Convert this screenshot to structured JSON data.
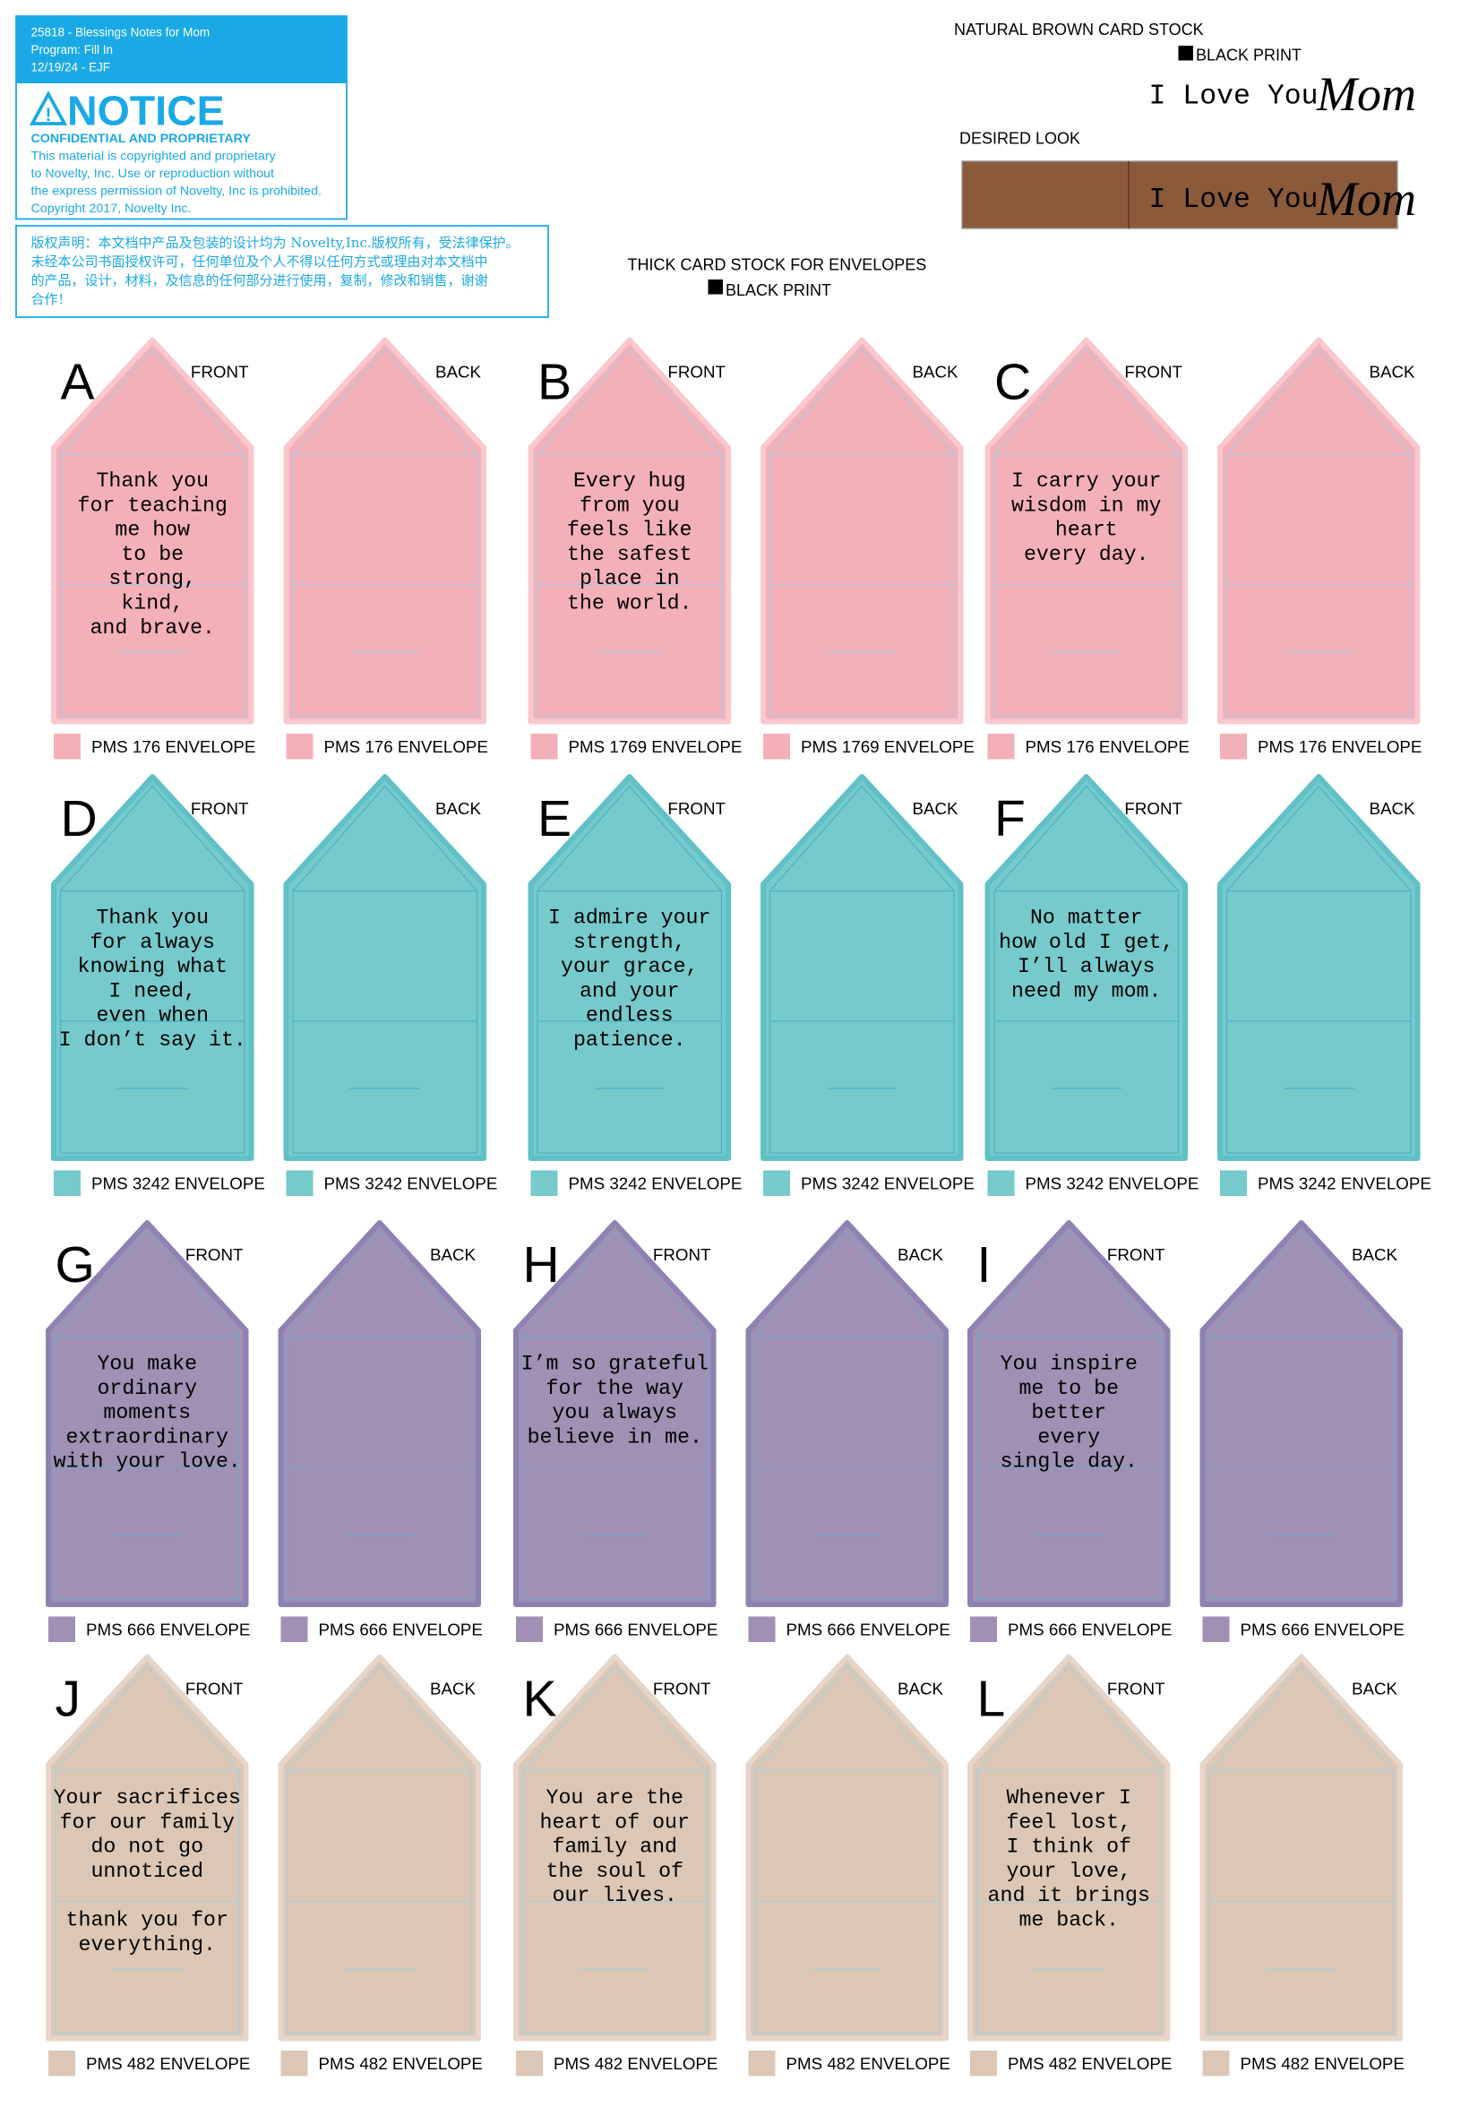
{
  "notice": {
    "meta": [
      "25818 - Blessings Notes for Mom",
      "Program: Fill In",
      "12/19/24 - EJF"
    ],
    "title": "NOTICE",
    "subtitle": "CONFIDENTIAL AND PROPRIETARY",
    "body": [
      "This material is copyrighted and proprietary",
      "to Novelty, Inc. Use or reproduction without",
      "the express permission of Novelty, Inc is prohibited.",
      "Copyright 2017, Novelty Inc."
    ],
    "chinese": [
      "版权声明：本文档中产品及包装的设计均为 Novelty,Inc.版权所有，受法律保护。",
      "未经本公司书面授权许可，任何单位及个人不得以任何方式或理由对本文档中",
      "的产品，设计，材料，及信息的任何部分进行使用，复制，修改和销售，谢谢",
      "合作！"
    ]
  },
  "spec": {
    "card_stock": "NATURAL BROWN CARD STOCK",
    "card_print": "BLACK PRINT",
    "sample_text": "I Love You",
    "sample_script": "Mom",
    "desired_look": "DESIRED LOOK",
    "envelope_stock": "THICK CARD STOCK FOR ENVELOPES",
    "envelope_print": "BLACK PRINT"
  },
  "rows": [
    {
      "fill": "#f4b0b9",
      "edge": "#f8c8ce",
      "inner": "#a9c9e0",
      "groups": [
        {
          "letter": "A",
          "front": {
            "label": "FRONT",
            "message": [
              "Thank you",
              "for teaching",
              "me how",
              "to be",
              "strong,",
              "kind,",
              "and brave."
            ],
            "swatch": "PMS 176 ENVELOPE"
          },
          "back": {
            "label": "BACK",
            "swatch": "PMS 176 ENVELOPE"
          }
        },
        {
          "letter": "B",
          "front": {
            "label": "FRONT",
            "message": [
              "Every hug",
              "from you",
              "feels like",
              "the safest",
              "place in",
              "the world."
            ],
            "swatch": "PMS 1769 ENVELOPE"
          },
          "back": {
            "label": "BACK",
            "swatch": "PMS 1769 ENVELOPE"
          }
        },
        {
          "letter": "C",
          "front": {
            "label": "FRONT",
            "message": [
              "I carry your",
              "wisdom in my",
              "heart",
              "every day."
            ],
            "swatch": "PMS 176 ENVELOPE"
          },
          "back": {
            "label": "BACK",
            "swatch": "PMS 176 ENVELOPE"
          }
        }
      ]
    },
    {
      "fill": "#76cacb",
      "edge": "#5fc1c6",
      "inner": "#4cb0c8",
      "groups": [
        {
          "letter": "D",
          "front": {
            "label": "FRONT",
            "message": [
              "Thank you",
              "for always",
              "knowing what",
              "I need,",
              "even when",
              "I don’t say it."
            ],
            "swatch": "PMS 3242 ENVELOPE"
          },
          "back": {
            "label": "BACK",
            "swatch": "PMS 3242 ENVELOPE"
          }
        },
        {
          "letter": "E",
          "front": {
            "label": "FRONT",
            "message": [
              "I admire your",
              "strength,",
              "your grace,",
              "and your",
              "endless",
              "patience."
            ],
            "swatch": "PMS 3242 ENVELOPE"
          },
          "back": {
            "label": "BACK",
            "swatch": "PMS 3242 ENVELOPE"
          }
        },
        {
          "letter": "F",
          "front": {
            "label": "FRONT",
            "message": [
              "No matter",
              "how old I get,",
              "I’ll always",
              "need my mom."
            ],
            "swatch": "PMS 3242 ENVELOPE"
          },
          "back": {
            "label": "BACK",
            "swatch": "PMS 3242 ENVELOPE"
          }
        }
      ]
    },
    {
      "fill": "#9f90b4",
      "edge": "#8d82b2",
      "inner": "#7fa2c8",
      "groups": [
        {
          "letter": "G",
          "front": {
            "label": "FRONT",
            "message": [
              "You make",
              "ordinary",
              "moments",
              "extraordinary",
              "with your love."
            ],
            "swatch": "PMS 666 ENVELOPE"
          },
          "back": {
            "label": "BACK",
            "swatch": "PMS 666 ENVELOPE"
          }
        },
        {
          "letter": "H",
          "front": {
            "label": "FRONT",
            "message": [
              "I’m so grateful",
              "for the way",
              "you always",
              "believe in me."
            ],
            "swatch": "PMS 666 ENVELOPE"
          },
          "back": {
            "label": "BACK",
            "swatch": "PMS 666 ENVELOPE"
          }
        },
        {
          "letter": "I",
          "front": {
            "label": "FRONT",
            "message": [
              "You inspire",
              "me to be",
              "better",
              "every",
              "single day."
            ],
            "swatch": "PMS 666 ENVELOPE"
          },
          "back": {
            "label": "BACK",
            "swatch": "PMS 666 ENVELOPE"
          }
        }
      ]
    },
    {
      "fill": "#dcc7b6",
      "edge": "#e6d5c9",
      "inner": "#a8cfd8",
      "groups": [
        {
          "letter": "J",
          "front": {
            "label": "FRONT",
            "message": [
              "Your sacrifices",
              "for our family",
              "do not go",
              "unnoticed",
              "",
              "thank you for",
              "everything."
            ],
            "swatch": "PMS 482 ENVELOPE"
          },
          "back": {
            "label": "BACK",
            "swatch": "PMS 482 ENVELOPE"
          }
        },
        {
          "letter": "K",
          "front": {
            "label": "FRONT",
            "message": [
              "You are the",
              "heart of our",
              "family and",
              "the soul of",
              "our lives."
            ],
            "swatch": "PMS 482 ENVELOPE"
          },
          "back": {
            "label": "BACK",
            "swatch": "PMS 482 ENVELOPE"
          }
        },
        {
          "letter": "L",
          "front": {
            "label": "FRONT",
            "message": [
              "Whenever I",
              "feel lost,",
              "I think of",
              "your love,",
              "and it brings",
              "me back."
            ],
            "swatch": "PMS 482 ENVELOPE"
          },
          "back": {
            "label": "BACK",
            "swatch": "PMS 482 ENVELOPE"
          }
        }
      ]
    }
  ]
}
